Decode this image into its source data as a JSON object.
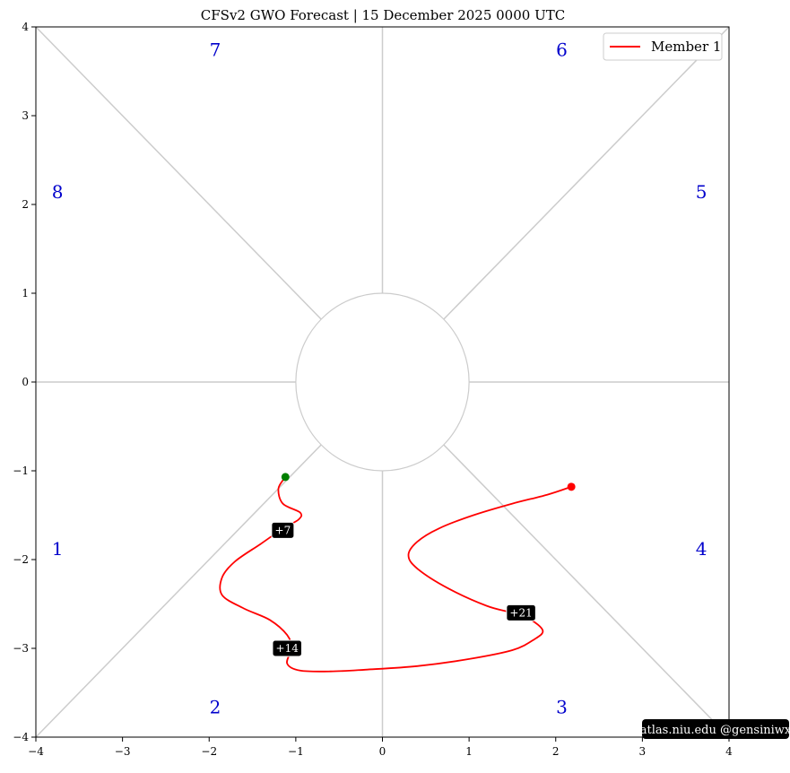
{
  "chart_data": {
    "type": "line",
    "title": "CFSv2 GWO Forecast   |   15  December  2025 0000 UTC",
    "xlabel": "",
    "ylabel": "",
    "xlim": [
      -4,
      4
    ],
    "ylim": [
      -4,
      4
    ],
    "x_ticks": [
      -4,
      -3,
      -2,
      -1,
      0,
      1,
      2,
      3,
      4
    ],
    "y_ticks": [
      -4,
      -3,
      -2,
      -1,
      0,
      1,
      2,
      3,
      4
    ],
    "x_tick_labels": [
      "−4",
      "−3",
      "−2",
      "−1",
      "0",
      "1",
      "2",
      "3",
      "4"
    ],
    "y_tick_labels": [
      "−4",
      "−3",
      "−2",
      "−1",
      "0",
      "1",
      "2",
      "3",
      "4"
    ],
    "grid": false,
    "center_circle_radius": 1,
    "phase_labels": [
      {
        "text": "1",
        "x": -3.75,
        "y": -1.95
      },
      {
        "text": "2",
        "x": -1.93,
        "y": -3.73
      },
      {
        "text": "3",
        "x": 2.07,
        "y": -3.73
      },
      {
        "text": "4",
        "x": 3.68,
        "y": -1.95
      },
      {
        "text": "5",
        "x": 3.68,
        "y": 2.07
      },
      {
        "text": "6",
        "x": 2.07,
        "y": 3.67
      },
      {
        "text": "7",
        "x": -1.93,
        "y": 3.67
      },
      {
        "text": "8",
        "x": -3.75,
        "y": 2.07
      }
    ],
    "legend": {
      "position": "top-right",
      "entries": [
        "Member 1"
      ]
    },
    "series": [
      {
        "name": "Member 1",
        "color": "#ff0000",
        "x": [
          -1.12,
          -1.2,
          -1.15,
          -0.95,
          -0.97,
          -1.15,
          -1.4,
          -1.7,
          -1.85,
          -1.85,
          -1.6,
          -1.3,
          -1.1,
          -1.05,
          -1.1,
          -0.95,
          -0.6,
          -0.2,
          0.4,
          1.0,
          1.5,
          1.75,
          1.85,
          1.7,
          1.5,
          1.2,
          0.75,
          0.4,
          0.3,
          0.4,
          0.65,
          1.05,
          1.5,
          1.9,
          2.18
        ],
        "y": [
          -1.07,
          -1.2,
          -1.37,
          -1.47,
          -1.55,
          -1.65,
          -1.82,
          -2.02,
          -2.2,
          -2.4,
          -2.55,
          -2.68,
          -2.85,
          -3.0,
          -3.17,
          -3.25,
          -3.26,
          -3.24,
          -3.2,
          -3.12,
          -3.02,
          -2.9,
          -2.8,
          -2.67,
          -2.6,
          -2.52,
          -2.32,
          -2.1,
          -1.95,
          -1.8,
          -1.65,
          -1.5,
          -1.37,
          -1.27,
          -1.18
        ]
      }
    ],
    "start_point": {
      "x": -1.12,
      "y": -1.07,
      "color": "#008000"
    },
    "end_point": {
      "x": 2.18,
      "y": -1.18,
      "color": "#ff0000"
    },
    "day_labels": [
      {
        "text": "+7",
        "x": -1.15,
        "y": -1.67
      },
      {
        "text": "+14",
        "x": -1.1,
        "y": -3.0
      },
      {
        "text": "+21",
        "x": 1.6,
        "y": -2.6
      }
    ]
  },
  "credit": "atlas.niu.edu  @gensiniwx"
}
